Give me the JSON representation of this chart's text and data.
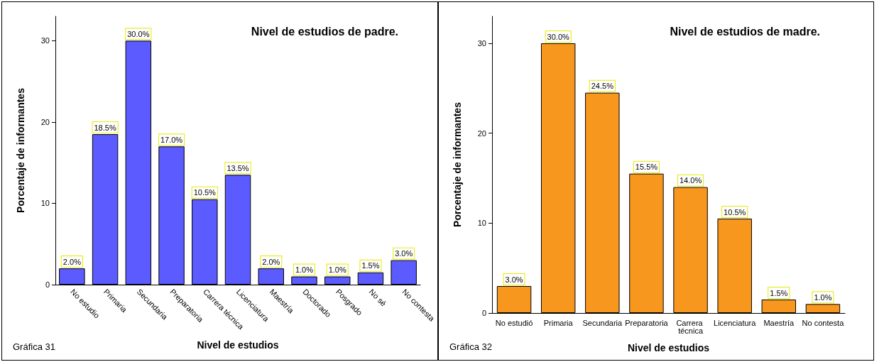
{
  "chart_data": [
    {
      "type": "bar",
      "title": "Nivel de estudios de padre.",
      "xlabel": "Nivel de estudios",
      "ylabel": "Porcentaje de informantes",
      "categories": [
        "No estudio",
        "Primaria",
        "Secundaria",
        "Preparatoria",
        "Carrera técnica",
        "Licenciatura",
        "Maestría",
        "Doctorado",
        "Posgrado",
        "No sé",
        "No contesta"
      ],
      "series": [
        {
          "color": "#5b5bff",
          "values": [
            2.0,
            18.5,
            30.0,
            17.0,
            10.5,
            13.5,
            2.0,
            1.0,
            1.0,
            1.5,
            3.0
          ],
          "value_labels": [
            "2.0%",
            "18.5%",
            "30.0%",
            "17.0%",
            "10.5%",
            "13.5%",
            "2.0%",
            "1.0%",
            "1.0%",
            "1.5%",
            "3.0%"
          ]
        }
      ],
      "ylim": [
        0,
        33
      ],
      "yticks": [
        0,
        10,
        20,
        30
      ],
      "grid": false,
      "annotations": [
        "Gráfica 31"
      ]
    },
    {
      "type": "bar",
      "title": "Nivel de estudios de madre.",
      "xlabel": "Nivel de estudios",
      "ylabel": "Porcentaje de informantes",
      "categories": [
        "No estudió",
        "Primaria",
        "Secundaria",
        "Preparatoria",
        "Carrera técnica",
        "Licenciatura",
        "Maestría",
        "No contesta"
      ],
      "series": [
        {
          "color": "#f7971d",
          "values": [
            3.0,
            30.0,
            24.5,
            15.5,
            14.0,
            10.5,
            1.5,
            1.0
          ],
          "value_labels": [
            "3.0%",
            "30.0%",
            "24.5%",
            "15.5%",
            "14.0%",
            "10.5%",
            "1.5%",
            "1.0%"
          ]
        }
      ],
      "ylim": [
        0,
        33
      ],
      "yticks": [
        0,
        10,
        20,
        30
      ],
      "grid": false,
      "annotations": [
        "Gráfica 32"
      ]
    }
  ]
}
